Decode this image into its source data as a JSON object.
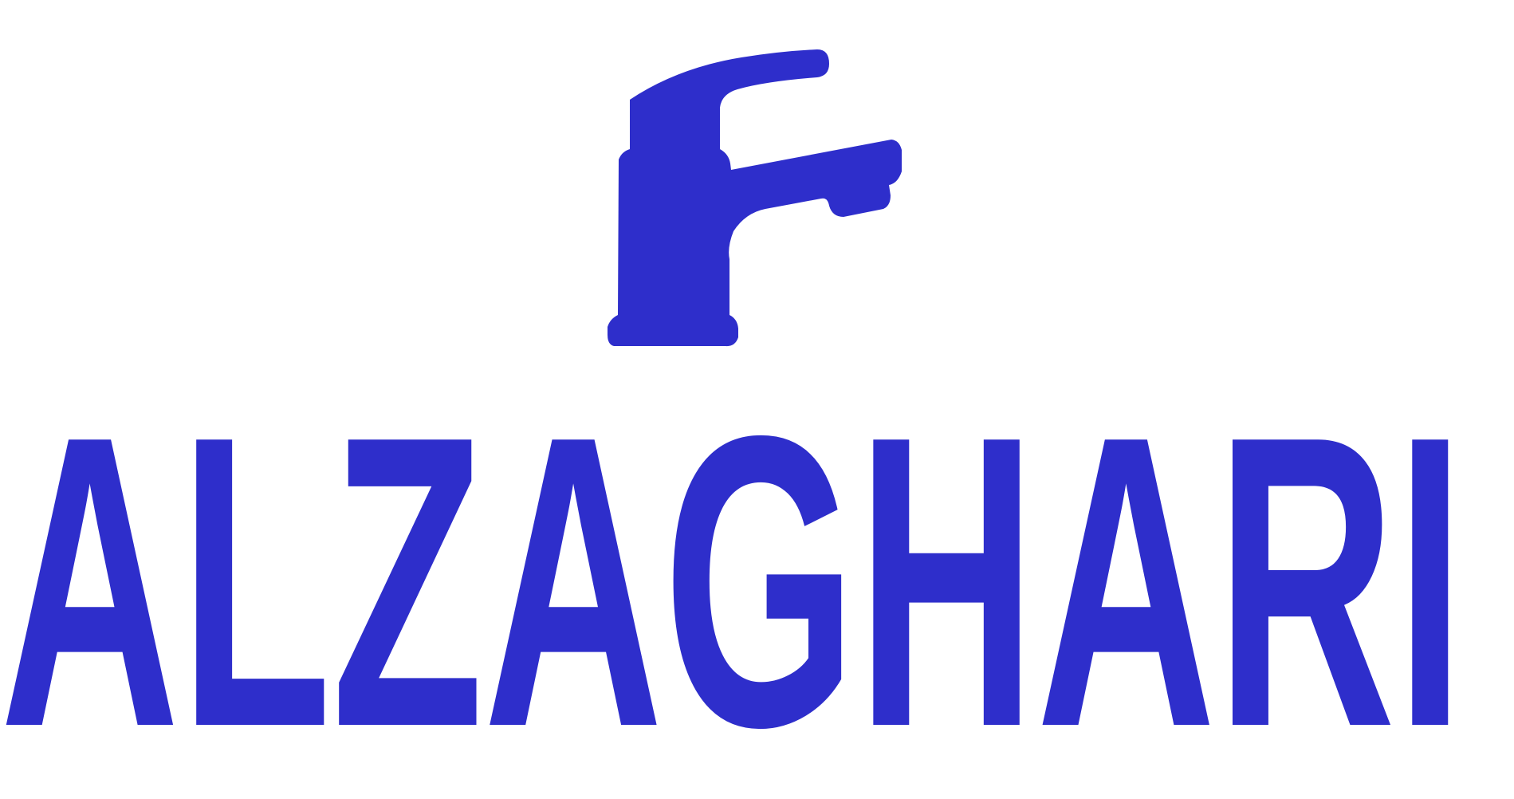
{
  "brand": {
    "wordmark": "ALZAGHARI",
    "icon": "faucet-icon",
    "color": "#2e2ecb",
    "background": "#ffffff"
  }
}
